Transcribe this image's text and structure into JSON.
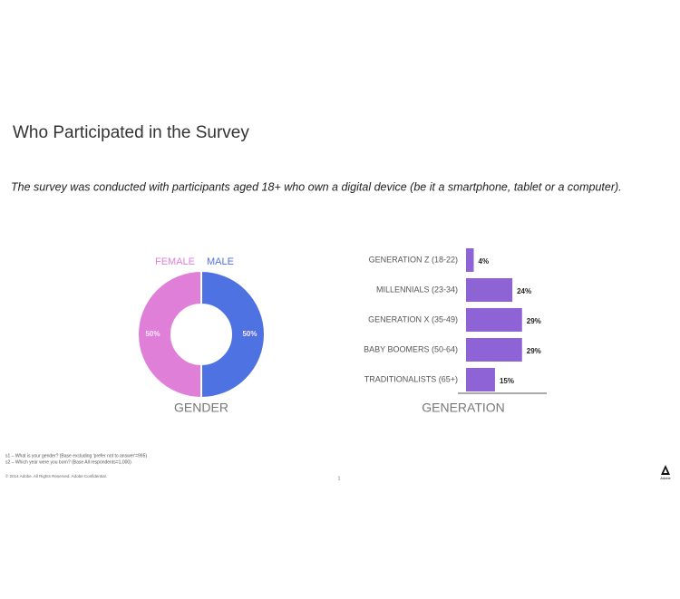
{
  "title": "Who Participated in the Survey",
  "subtitle": "The survey was conducted with participants aged 18+ who own a digital device (be it a smartphone, tablet or a computer).",
  "chart_data": [
    {
      "type": "pie",
      "categories": [
        "FEMALE",
        "MALE"
      ],
      "values": [
        50,
        50
      ],
      "value_labels": [
        "50%",
        "50%"
      ],
      "colors": [
        "#e07fd8",
        "#4f72e3"
      ],
      "xlabel": "GENDER"
    },
    {
      "type": "bar",
      "categories": [
        "GENERATION Z (18-22)",
        "MILLENNIALS (23-34)",
        "GENERATION X (35-49)",
        "BABY BOOMERS (50-64)",
        "TRADITIONALISTS (65+)"
      ],
      "values": [
        4,
        24,
        29,
        29,
        15
      ],
      "value_labels": [
        "4%",
        "24%",
        "29%",
        "29%",
        "15%"
      ],
      "color": "#8d63d6",
      "xlabel": "GENERATION"
    }
  ],
  "footnotes": [
    "s1 – What is your gender? (Base excluding 'prefer not to answer'=995)",
    "s2 – Which year were you born? (Base All respondents=1,000)"
  ],
  "copyright": "© 2014 Adobe. All Rights Reserved. Adobe Confidential.",
  "page_number": "1",
  "logo": "Adobe"
}
